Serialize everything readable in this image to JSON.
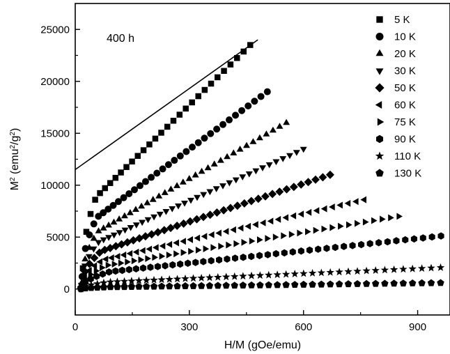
{
  "chart_data": {
    "type": "scatter",
    "title": "",
    "annotation": "400 h",
    "xlabel": "H/M (gOe/emu)",
    "ylabel_parts": [
      "M",
      "2",
      " (emu",
      "2",
      "/g",
      "2",
      ")"
    ],
    "xlim": [
      0,
      985
    ],
    "ylim": [
      -2500,
      27500
    ],
    "xticks": [
      0,
      300,
      600,
      900
    ],
    "yticks": [
      0,
      5000,
      10000,
      15000,
      20000,
      25000
    ],
    "legend_position": "top-right",
    "series": [
      {
        "name": "5 K",
        "marker": "square",
        "x_start": 20,
        "x_end": 460,
        "y_at_end": 23500,
        "y_near_origin": 2000,
        "n_points": 30
      },
      {
        "name": "10 K",
        "marker": "circle",
        "x_start": 18,
        "x_end": 505,
        "y_at_end": 19000,
        "y_near_origin": 1200,
        "n_points": 34
      },
      {
        "name": "20 K",
        "marker": "triangle-up",
        "x_start": 17,
        "x_end": 555,
        "y_at_end": 16000,
        "y_near_origin": 600,
        "n_points": 36
      },
      {
        "name": "30 K",
        "marker": "triangle-down",
        "x_start": 16,
        "x_end": 600,
        "y_at_end": 13500,
        "y_near_origin": 400,
        "n_points": 38
      },
      {
        "name": "50 K",
        "marker": "diamond",
        "x_start": 16,
        "x_end": 670,
        "y_at_end": 11000,
        "y_near_origin": 200,
        "n_points": 40
      },
      {
        "name": "60 K",
        "marker": "triangle-left",
        "x_start": 15,
        "x_end": 760,
        "y_at_end": 8600,
        "y_near_origin": 100,
        "n_points": 42
      },
      {
        "name": "75 K",
        "marker": "triangle-right",
        "x_start": 15,
        "x_end": 850,
        "y_at_end": 7000,
        "y_near_origin": 50,
        "n_points": 44
      },
      {
        "name": "90 K",
        "marker": "hexagon",
        "x_start": 15,
        "x_end": 985,
        "y_at_end": 5200,
        "y_near_origin": 20,
        "n_points": 48
      },
      {
        "name": "110 K",
        "marker": "star",
        "x_start": 15,
        "x_end": 985,
        "y_at_end": 2100,
        "y_near_origin": 10,
        "n_points": 46
      },
      {
        "name": "130 K",
        "marker": "pentagon",
        "x_start": 15,
        "x_end": 985,
        "y_at_end": 600,
        "y_near_origin": 0,
        "n_points": 46
      }
    ],
    "fit_line": {
      "x": [
        0,
        480
      ],
      "y": [
        11500,
        24000
      ]
    }
  }
}
